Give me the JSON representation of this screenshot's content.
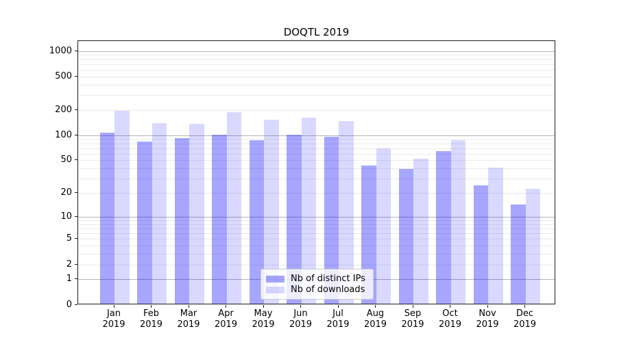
{
  "chart_data": {
    "type": "bar",
    "title": "DOQTL 2019",
    "categories": [
      "Jan",
      "Feb",
      "Mar",
      "Apr",
      "May",
      "Jun",
      "Jul",
      "Aug",
      "Sep",
      "Oct",
      "Nov",
      "Dec"
    ],
    "category_sublabel": "2019",
    "series": [
      {
        "name": "Nb of distinct IPs",
        "color": "#0000ff59",
        "values": [
          105,
          81,
          90,
          98,
          84,
          98,
          93,
          42,
          38,
          63,
          24,
          14
        ]
      },
      {
        "name": "Nb of downloads",
        "color": "#0000ff26",
        "values": [
          190,
          135,
          134,
          183,
          150,
          157,
          143,
          67,
          51,
          85,
          40,
          22
        ]
      }
    ],
    "xlabel": "",
    "ylabel": "",
    "y_ticks": [
      0,
      1,
      2,
      5,
      10,
      20,
      50,
      100,
      200,
      500,
      1000
    ],
    "y_scale": "log1p",
    "ylim": [
      0,
      1330
    ],
    "grid": true,
    "grid_major_color": "#b3b3b3",
    "grid_minor_color": "#ebebeb",
    "legend_position": "lower-center",
    "legend_bg": "#ffffffcc",
    "legend_border": "#cccccc"
  }
}
